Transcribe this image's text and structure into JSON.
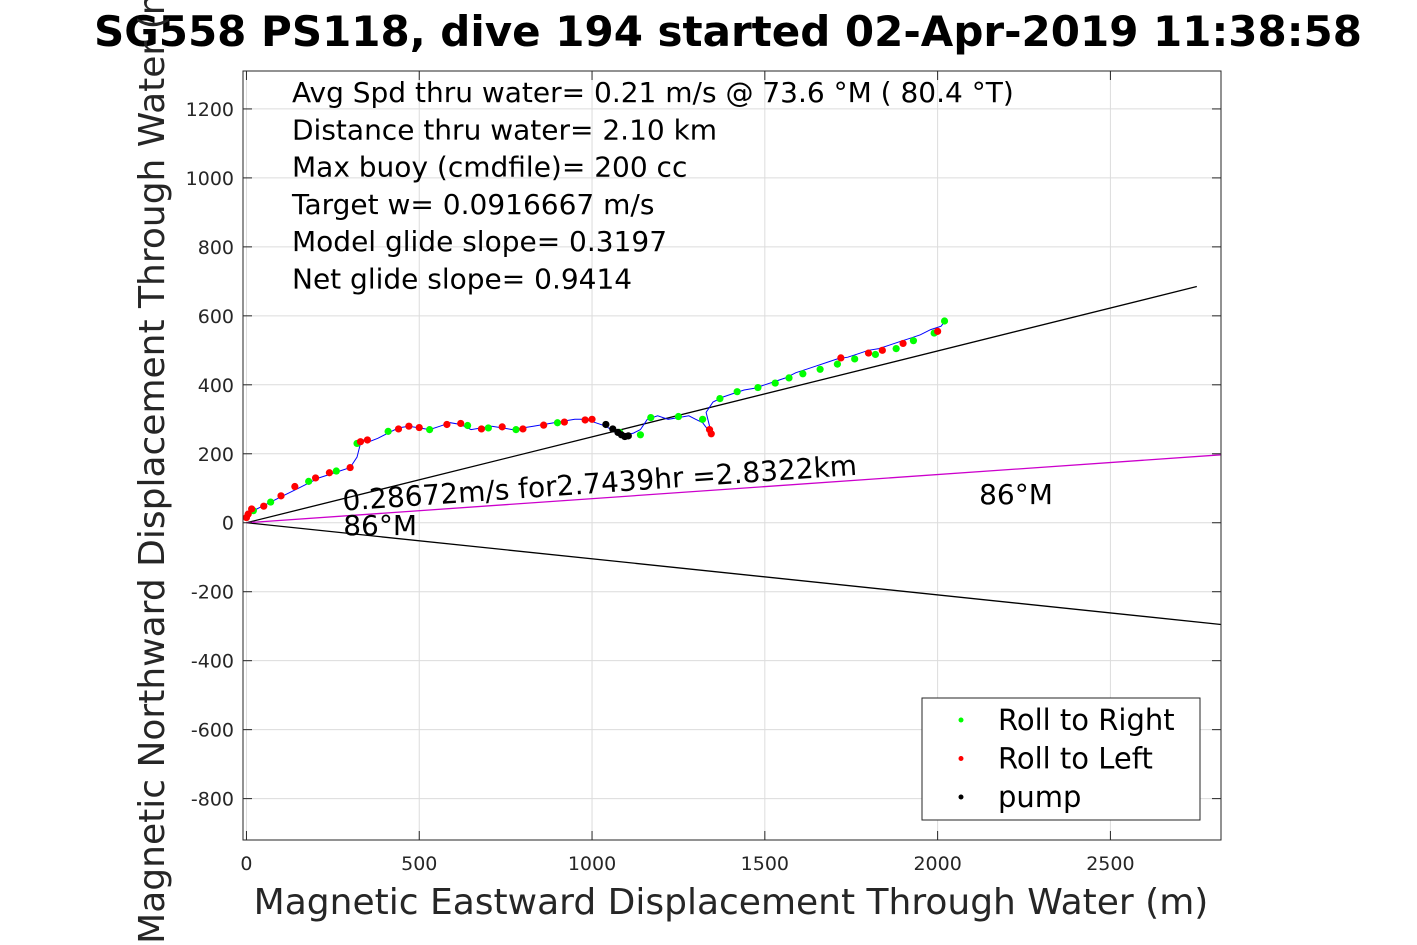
{
  "chart_data": {
    "type": "scatter",
    "title": "SG558 PS118, dive 194 started 02-Apr-2019 11:38:58",
    "xlabel": "Magnetic Eastward Displacement Through Water (m)",
    "ylabel": "Magnetic Northward Displacement Through Water (m)",
    "xlim": [
      -10,
      2820
    ],
    "ylim": [
      -920,
      1310
    ],
    "xticks": [
      0,
      500,
      1000,
      1500,
      2000,
      2500
    ],
    "yticks": [
      -800,
      -600,
      -400,
      -200,
      0,
      200,
      400,
      600,
      800,
      1000,
      1200
    ],
    "grid": true,
    "annotations": [
      "Avg Spd thru water=  0.21 m/s @  73.6 °M ( 80.4 °T)",
      "Distance thru water=  2.10 km",
      "Max buoy (cmdfile)= 200 cc",
      "Target w= 0.0916667 m/s",
      "Model glide slope= 0.3197",
      "Net glide slope= 0.9414"
    ],
    "reference_lines": [
      {
        "x": [
          0,
          2750
        ],
        "y": [
          0,
          685
        ],
        "color": "#000000"
      },
      {
        "x": [
          0,
          2820
        ],
        "y": [
          0,
          -295
        ],
        "color": "#000000"
      },
      {
        "x": [
          0,
          2820
        ],
        "y": [
          0,
          197
        ],
        "color": "#cc00cc"
      }
    ],
    "line_labels": [
      {
        "text": "0.28672m/s for2.7439hr =2.8322km",
        "x": 280,
        "y": 35
      },
      {
        "text": "86°M",
        "x": 280,
        "y": -35
      },
      {
        "text": "86°M",
        "x": 2120,
        "y": 55
      }
    ],
    "track": {
      "x": [
        0,
        5,
        30,
        60,
        90,
        120,
        150,
        180,
        210,
        240,
        270,
        300,
        320,
        330,
        340,
        355,
        380,
        410,
        440,
        470,
        500,
        530,
        560,
        590,
        620,
        650,
        680,
        710,
        740,
        770,
        800,
        830,
        860,
        890,
        920,
        950,
        980,
        1010,
        1040,
        1070,
        1090,
        1100,
        1120,
        1140,
        1160,
        1190,
        1220,
        1250,
        1280,
        1300,
        1320,
        1335,
        1345,
        1330,
        1350,
        1380,
        1410,
        1440,
        1470,
        1500,
        1530,
        1560,
        1590,
        1620,
        1650,
        1680,
        1710,
        1740,
        1770,
        1800,
        1830,
        1860,
        1890,
        1920,
        1950,
        1980,
        2010,
        2025
      ],
      "y": [
        20,
        30,
        40,
        55,
        70,
        85,
        100,
        115,
        130,
        140,
        150,
        160,
        190,
        230,
        240,
        235,
        245,
        260,
        275,
        280,
        275,
        270,
        280,
        290,
        285,
        270,
        275,
        280,
        275,
        270,
        275,
        280,
        285,
        290,
        295,
        300,
        300,
        290,
        280,
        260,
        250,
        255,
        260,
        270,
        300,
        310,
        300,
        305,
        310,
        300,
        290,
        270,
        260,
        320,
        350,
        365,
        375,
        385,
        390,
        400,
        410,
        420,
        435,
        445,
        455,
        465,
        475,
        480,
        490,
        500,
        505,
        515,
        525,
        535,
        545,
        560,
        570,
        590
      ]
    },
    "series": [
      {
        "name": "Roll to Right",
        "color": "#00ff00",
        "x": [
          20,
          70,
          180,
          260,
          320,
          410,
          530,
          640,
          700,
          780,
          900,
          1080,
          1140,
          1170,
          1250,
          1320,
          1370,
          1420,
          1480,
          1530,
          1570,
          1610,
          1660,
          1710,
          1760,
          1820,
          1880,
          1930,
          1990,
          2020
        ],
        "y": [
          35,
          60,
          120,
          150,
          230,
          265,
          270,
          282,
          275,
          270,
          290,
          262,
          255,
          305,
          308,
          300,
          360,
          380,
          392,
          405,
          420,
          432,
          445,
          460,
          475,
          488,
          505,
          528,
          550,
          585
        ]
      },
      {
        "name": "Roll to Left",
        "color": "#ff0000",
        "x": [
          0,
          5,
          15,
          50,
          100,
          140,
          200,
          240,
          300,
          330,
          350,
          440,
          470,
          500,
          580,
          620,
          680,
          740,
          800,
          860,
          920,
          980,
          1000,
          1340,
          1345,
          1720,
          1800,
          1840,
          1900,
          2000
        ],
        "y": [
          15,
          25,
          40,
          48,
          78,
          105,
          130,
          145,
          160,
          235,
          240,
          272,
          280,
          276,
          285,
          288,
          272,
          278,
          272,
          283,
          292,
          298,
          300,
          270,
          258,
          478,
          492,
          500,
          520,
          555
        ]
      },
      {
        "name": "pump",
        "color": "#000000",
        "x": [
          1040,
          1060,
          1075,
          1085,
          1095,
          1105
        ],
        "y": [
          285,
          272,
          262,
          255,
          250,
          252
        ]
      }
    ],
    "legend_placement": "bottom-right"
  }
}
